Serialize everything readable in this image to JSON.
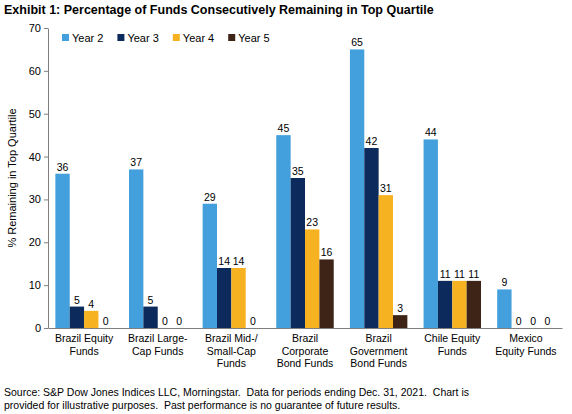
{
  "chart_data": {
    "type": "bar",
    "title": "Exhibit 1: Percentage of Funds Consecutively Remaining in Top Quartile",
    "y_label": "% Remaining in Top Quartile",
    "categories": [
      "Brazil Equity\nFunds",
      "Brazil Large-\nCap Funds",
      "Brazil Mid-/\nSmall-Cap\nFunds",
      "Brazil\nCorporate\nBond Funds",
      "Brazil\nGovernment\nBond Funds",
      "Chile Equity\nFunds",
      "Mexico\nEquity Funds"
    ],
    "series": [
      {
        "name": "Year 2",
        "color": "#43a0dc",
        "values": [
          36,
          37,
          29,
          45,
          65,
          44,
          9
        ]
      },
      {
        "name": "Year 3",
        "color": "#0c2a5c",
        "values": [
          5,
          5,
          14,
          35,
          42,
          11,
          0
        ]
      },
      {
        "name": "Year 4",
        "color": "#f6b220",
        "values": [
          4,
          0,
          14,
          23,
          31,
          11,
          0
        ]
      },
      {
        "name": "Year 5",
        "color": "#3d2417",
        "values": [
          0,
          0,
          0,
          16,
          3,
          11,
          0
        ]
      }
    ],
    "ylim": [
      0,
      70
    ],
    "yticks": [
      0,
      10,
      20,
      30,
      40,
      50,
      60,
      70
    ],
    "grid": false,
    "legend": "top",
    "data_labels": true,
    "annotations": [
      "Source: S&P Dow Jones Indices LLC, Morningstar.  Data for periods ending Dec. 31, 2021.  Chart is\nprovided for illustrative purposes.  Past performance is no guarantee of future results."
    ]
  }
}
